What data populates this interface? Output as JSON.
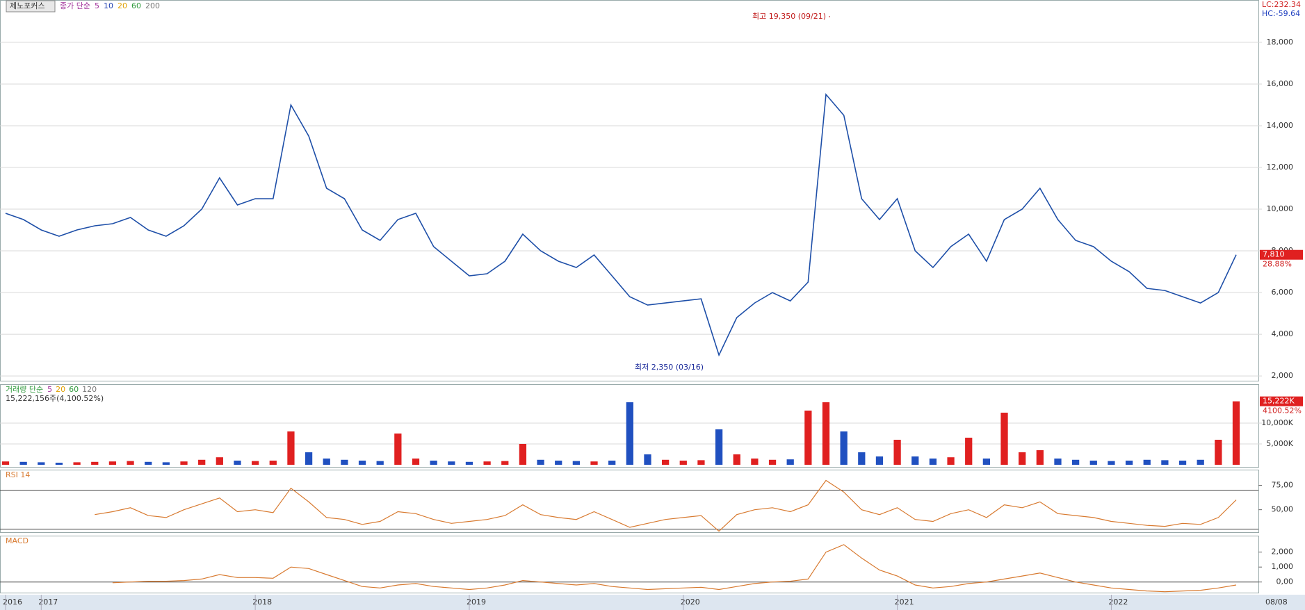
{
  "header": {
    "stock": "제노포커스",
    "legend": [
      "종가 단순",
      "5",
      "10",
      "20",
      "60",
      "200"
    ],
    "legend_colors": [
      "#a0309a",
      "#a0309a",
      "#1f3fb0",
      "#e0a000",
      "#2e9a3c",
      "#777777"
    ],
    "lc": "LC:232.34",
    "hc": "HC:-59.64"
  },
  "chart_data": [
    {
      "type": "line",
      "name": "price",
      "color": "#1e4fa8",
      "categories": [
        "2016",
        null,
        "2017",
        null,
        null,
        null,
        null,
        null,
        null,
        null,
        null,
        null,
        null,
        null,
        "2018",
        null,
        null,
        null,
        null,
        null,
        null,
        null,
        null,
        null,
        null,
        null,
        "2019",
        null,
        null,
        null,
        null,
        null,
        null,
        null,
        null,
        null,
        null,
        null,
        "2020",
        null,
        null,
        null,
        null,
        null,
        null,
        null,
        null,
        null,
        null,
        null,
        "2021",
        null,
        null,
        null,
        null,
        null,
        null,
        null,
        null,
        null,
        null,
        null,
        "2022",
        null,
        null,
        null,
        null,
        null,
        null,
        "08/08"
      ],
      "values": [
        9800,
        9500,
        9000,
        8700,
        9000,
        9200,
        9300,
        9600,
        9000,
        8700,
        9200,
        10000,
        11500,
        10200,
        10500,
        10500,
        15000,
        13500,
        11000,
        10500,
        9000,
        8500,
        9500,
        9800,
        8200,
        7500,
        6800,
        6900,
        7500,
        8800,
        8000,
        7500,
        7200,
        7800,
        6800,
        5800,
        5400,
        5500,
        5600,
        5700,
        3000,
        4800,
        5500,
        6000,
        5600,
        6500,
        15500,
        14500,
        10500,
        9500,
        10500,
        8000,
        7200,
        8200,
        8800,
        7500,
        9500,
        10000,
        11000,
        9500,
        8500,
        8200,
        7500,
        7000,
        6200,
        6100,
        5800,
        5500,
        6000,
        7810
      ],
      "current_label": "7,810",
      "change_label": "28.88%",
      "high_label": "최고 19,350 (09/21)",
      "low_label": "최저 2,350 (03/16)",
      "ylim": [
        1770,
        20030
      ],
      "yticks": [
        {
          "value": 2000,
          "label": "2,000"
        },
        {
          "value": 4000,
          "label": "4,000"
        },
        {
          "value": 6000,
          "label": "6,000"
        },
        {
          "value": 8000,
          "label": "8,000"
        },
        {
          "value": 10000,
          "label": "10,000"
        },
        {
          "value": 12000,
          "label": "12,000"
        },
        {
          "value": 14000,
          "label": "14,000"
        },
        {
          "value": 16000,
          "label": "16,000"
        },
        {
          "value": 18000,
          "label": "18,000"
        }
      ],
      "grid": true
    },
    {
      "type": "bar",
      "name": "volume",
      "up_color": "#e02020",
      "down_color": "#2050c0",
      "title": "거래량 단순",
      "legend": [
        "5",
        "20",
        "60",
        "120"
      ],
      "legend_colors": [
        "#a0309a",
        "#e0a000",
        "#2e9a3c",
        "#777777"
      ],
      "summary": "15,222,156주(4,100.52%)",
      "current_label": "15,222K",
      "change_label": "4100.52%",
      "values": [
        800,
        700,
        600,
        500,
        600,
        700,
        800,
        900,
        700,
        600,
        800,
        1200,
        1800,
        1000,
        900,
        1000,
        8000,
        3000,
        1500,
        1200,
        1000,
        900,
        7500,
        1500,
        1000,
        800,
        700,
        800,
        900,
        5000,
        1200,
        1000,
        900,
        800,
        1000,
        15000,
        2500,
        1200,
        1000,
        1100,
        8500,
        2500,
        1500,
        1200,
        1300,
        13000,
        15000,
        8000,
        3000,
        2000,
        6000,
        2000,
        1500,
        1800,
        6500,
        1500,
        12500,
        3000,
        3500,
        1500,
        1200,
        1000,
        900,
        1000,
        1200,
        1100,
        1000,
        1200,
        6000,
        15222
      ],
      "ylim": [
        -670,
        19330
      ],
      "yticks": [
        {
          "value": 5000,
          "label": "5,000K"
        },
        {
          "value": 10000,
          "label": "10,000K"
        }
      ],
      "grid": true
    },
    {
      "type": "line",
      "name": "rsi",
      "title": "RSI 14",
      "color": "#d87a30",
      "values": [
        null,
        null,
        null,
        null,
        null,
        45,
        48,
        52,
        44,
        42,
        50,
        56,
        62,
        48,
        50,
        47,
        72,
        58,
        42,
        40,
        35,
        38,
        48,
        46,
        40,
        36,
        38,
        40,
        44,
        55,
        45,
        42,
        40,
        48,
        40,
        32,
        36,
        40,
        42,
        44,
        28,
        45,
        50,
        52,
        48,
        55,
        80,
        68,
        50,
        45,
        52,
        40,
        38,
        46,
        50,
        42,
        55,
        52,
        58,
        46,
        44,
        42,
        38,
        36,
        34,
        33,
        36,
        35,
        42,
        60
      ],
      "levels": [
        30,
        70
      ],
      "ylim": [
        27,
        91
      ],
      "yticks": [
        {
          "value": 50,
          "label": "50,00"
        },
        {
          "value": 75,
          "label": "75,00"
        }
      ],
      "grid": false
    },
    {
      "type": "line",
      "name": "macd",
      "title": "MACD",
      "color": "#d87a30",
      "values": [
        null,
        null,
        null,
        null,
        null,
        null,
        -50,
        0,
        50,
        50,
        100,
        200,
        500,
        300,
        300,
        250,
        1000,
        900,
        500,
        100,
        -300,
        -400,
        -200,
        -100,
        -300,
        -400,
        -500,
        -400,
        -200,
        100,
        0,
        -100,
        -200,
        -100,
        -300,
        -400,
        -500,
        -450,
        -400,
        -350,
        -500,
        -300,
        -100,
        0,
        50,
        200,
        2000,
        2500,
        1600,
        800,
        400,
        -200,
        -400,
        -300,
        -100,
        0,
        200,
        400,
        600,
        300,
        0,
        -200,
        -400,
        -500,
        -600,
        -650,
        -600,
        -550,
        -400,
        -200
      ],
      "levels": [
        0
      ],
      "ylim": [
        -710,
        3100
      ],
      "yticks": [
        {
          "value": 0,
          "label": "0,00"
        },
        {
          "value": 1000,
          "label": "1,000"
        },
        {
          "value": 2000,
          "label": "2,000"
        }
      ],
      "grid": false
    }
  ]
}
